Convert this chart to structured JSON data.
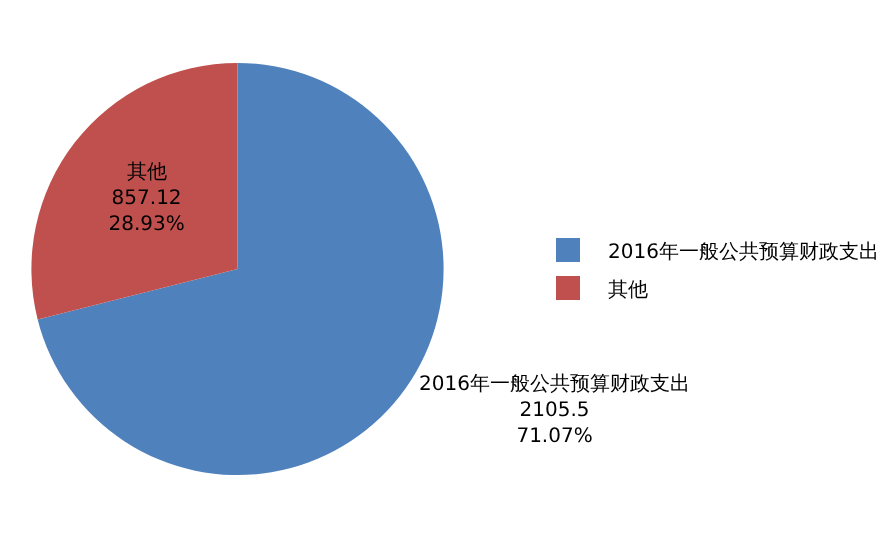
{
  "chart_data": {
    "type": "pie",
    "categories": [
      "2016年一般公共预算财政支出",
      "其他"
    ],
    "values": [
      2105.5,
      857.12
    ],
    "colors": [
      "#4f81bd",
      "#c0504d"
    ],
    "value_labels": [
      "2105.5 71.07%",
      "857.12 28.93%"
    ],
    "legend": "right"
  }
}
